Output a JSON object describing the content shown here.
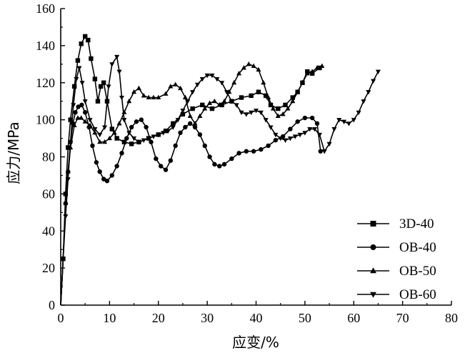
{
  "chart_data": {
    "type": "line",
    "xlabel": "应变/%",
    "ylabel": "应力/MPa",
    "xlim": [
      0,
      80
    ],
    "ylim": [
      0,
      160
    ],
    "x_ticks": [
      0,
      10,
      20,
      30,
      40,
      50,
      60,
      70,
      80
    ],
    "y_ticks": [
      0,
      20,
      40,
      60,
      80,
      100,
      120,
      140,
      160
    ],
    "grid": false,
    "legend_position": "bottom-right",
    "series": [
      {
        "name": "3D-40",
        "marker": "square",
        "points": [
          [
            0,
            0
          ],
          [
            0.5,
            25
          ],
          [
            1,
            60
          ],
          [
            1.5,
            85
          ],
          [
            2,
            100
          ],
          [
            2.8,
            118
          ],
          [
            3.5,
            132
          ],
          [
            4.2,
            141
          ],
          [
            5,
            145
          ],
          [
            5.6,
            143
          ],
          [
            6.2,
            133
          ],
          [
            7,
            122
          ],
          [
            7.6,
            110
          ],
          [
            8.2,
            118
          ],
          [
            8.8,
            120
          ],
          [
            9.5,
            110
          ],
          [
            10.5,
            95
          ],
          [
            11.5,
            90
          ],
          [
            13,
            88
          ],
          [
            14.5,
            87
          ],
          [
            16,
            88
          ],
          [
            18,
            90
          ],
          [
            20,
            92
          ],
          [
            21.5,
            94
          ],
          [
            23,
            98
          ],
          [
            25,
            103
          ],
          [
            27,
            106
          ],
          [
            29,
            108
          ],
          [
            31,
            106
          ],
          [
            33,
            108
          ],
          [
            35,
            110
          ],
          [
            37,
            112
          ],
          [
            39,
            113
          ],
          [
            40.5,
            115
          ],
          [
            42,
            113
          ],
          [
            43,
            108
          ],
          [
            44.5,
            106
          ],
          [
            46,
            108
          ],
          [
            47.5,
            112
          ],
          [
            48.5,
            115
          ],
          [
            49.5,
            120
          ],
          [
            50.5,
            126
          ],
          [
            51.5,
            125
          ],
          [
            53,
            128
          ]
        ]
      },
      {
        "name": "OB-40",
        "marker": "circle",
        "points": [
          [
            0,
            0
          ],
          [
            0.5,
            25
          ],
          [
            1,
            55
          ],
          [
            1.5,
            72
          ],
          [
            2,
            88
          ],
          [
            2.5,
            98
          ],
          [
            3,
            104
          ],
          [
            3.6,
            107
          ],
          [
            4.3,
            108
          ],
          [
            5,
            104
          ],
          [
            5.8,
            96
          ],
          [
            6.5,
            86
          ],
          [
            7.3,
            77
          ],
          [
            8,
            72
          ],
          [
            8.8,
            68
          ],
          [
            9.5,
            67
          ],
          [
            10.5,
            70
          ],
          [
            11.5,
            75
          ],
          [
            12.5,
            82
          ],
          [
            13.5,
            90
          ],
          [
            14.5,
            96
          ],
          [
            15.5,
            99
          ],
          [
            16.5,
            100
          ],
          [
            17.5,
            96
          ],
          [
            18.5,
            88
          ],
          [
            19.5,
            79
          ],
          [
            20.5,
            75
          ],
          [
            21.5,
            73
          ],
          [
            22.5,
            78
          ],
          [
            23.5,
            86
          ],
          [
            24.5,
            93
          ],
          [
            25.5,
            96
          ],
          [
            26.5,
            98
          ],
          [
            27.5,
            96
          ],
          [
            28.5,
            92
          ],
          [
            29.5,
            86
          ],
          [
            30.5,
            80
          ],
          [
            31.5,
            76
          ],
          [
            32.5,
            75
          ],
          [
            33.5,
            76
          ],
          [
            35,
            79
          ],
          [
            36.5,
            82
          ],
          [
            38,
            83
          ],
          [
            39.5,
            83
          ],
          [
            41,
            84
          ],
          [
            42.5,
            86
          ],
          [
            44,
            89
          ],
          [
            45.5,
            91
          ],
          [
            47,
            95
          ],
          [
            48.5,
            99
          ],
          [
            50,
            101
          ],
          [
            51.5,
            101
          ],
          [
            52.5,
            98
          ],
          [
            53.2,
            83
          ]
        ]
      },
      {
        "name": "OB-50",
        "marker": "triangle-up",
        "points": [
          [
            0,
            0
          ],
          [
            0.5,
            25
          ],
          [
            1,
            55
          ],
          [
            1.5,
            72
          ],
          [
            2,
            85
          ],
          [
            2.8,
            97
          ],
          [
            3.5,
            101
          ],
          [
            4.2,
            101
          ],
          [
            5,
            99
          ],
          [
            6,
            97
          ],
          [
            7,
            93
          ],
          [
            8,
            88
          ],
          [
            9,
            88
          ],
          [
            10,
            90
          ],
          [
            11,
            93
          ],
          [
            12,
            98
          ],
          [
            13,
            104
          ],
          [
            14,
            110
          ],
          [
            15,
            115
          ],
          [
            16,
            117
          ],
          [
            17,
            113
          ],
          [
            18,
            112
          ],
          [
            19,
            112
          ],
          [
            20,
            112
          ],
          [
            21.5,
            114
          ],
          [
            22.5,
            118
          ],
          [
            23.5,
            119
          ],
          [
            24.5,
            117
          ],
          [
            25.5,
            112
          ],
          [
            26.5,
            102
          ],
          [
            27.5,
            98
          ],
          [
            28.5,
            102
          ],
          [
            29.5,
            106
          ],
          [
            30.5,
            109
          ],
          [
            31.5,
            110
          ],
          [
            32.5,
            108
          ],
          [
            33.5,
            110
          ],
          [
            34.5,
            115
          ],
          [
            35.5,
            120
          ],
          [
            36.5,
            125
          ],
          [
            37.5,
            128
          ],
          [
            38.5,
            130
          ],
          [
            39.5,
            129
          ],
          [
            40.5,
            127
          ],
          [
            41.5,
            120
          ],
          [
            42.5,
            112
          ],
          [
            43.5,
            106
          ],
          [
            44.5,
            102
          ],
          [
            45.5,
            103
          ],
          [
            46.5,
            106
          ],
          [
            47.5,
            110
          ],
          [
            48.5,
            115
          ],
          [
            49.5,
            120
          ],
          [
            50.5,
            125
          ],
          [
            51.5,
            126
          ],
          [
            52.5,
            128
          ],
          [
            53.5,
            129
          ]
        ]
      },
      {
        "name": "OB-60",
        "marker": "triangle-down",
        "points": [
          [
            0,
            0
          ],
          [
            0.5,
            25
          ],
          [
            1,
            48
          ],
          [
            1.5,
            68
          ],
          [
            2,
            88
          ],
          [
            2.6,
            108
          ],
          [
            3.2,
            122
          ],
          [
            3.8,
            128
          ],
          [
            4.4,
            120
          ],
          [
            5,
            110
          ],
          [
            6,
            100
          ],
          [
            7,
            95
          ],
          [
            8,
            92
          ],
          [
            9,
            96
          ],
          [
            9.8,
            118
          ],
          [
            10.5,
            130
          ],
          [
            11.5,
            134
          ],
          [
            12,
            126
          ],
          [
            12.5,
            112
          ],
          [
            13,
            100
          ],
          [
            14,
            93
          ],
          [
            15,
            90
          ],
          [
            16,
            88
          ],
          [
            17,
            89
          ],
          [
            18,
            90
          ],
          [
            19,
            91
          ],
          [
            20,
            92
          ],
          [
            21,
            93
          ],
          [
            22,
            94
          ],
          [
            23,
            96
          ],
          [
            24,
            100
          ],
          [
            25,
            105
          ],
          [
            26,
            110
          ],
          [
            27,
            115
          ],
          [
            28,
            119
          ],
          [
            29,
            122
          ],
          [
            30,
            124
          ],
          [
            31,
            124
          ],
          [
            32,
            122
          ],
          [
            33,
            120
          ],
          [
            34,
            115
          ],
          [
            35,
            110
          ],
          [
            36,
            108
          ],
          [
            37,
            104
          ],
          [
            38,
            103
          ],
          [
            39,
            104
          ],
          [
            40,
            105
          ],
          [
            41,
            104
          ],
          [
            42,
            100
          ],
          [
            43,
            96
          ],
          [
            44,
            92
          ],
          [
            45,
            90
          ],
          [
            46,
            89
          ],
          [
            47,
            90
          ],
          [
            48,
            91
          ],
          [
            49,
            92
          ],
          [
            50,
            93
          ],
          [
            51,
            95
          ],
          [
            52,
            95
          ],
          [
            53,
            92
          ],
          [
            54,
            83
          ],
          [
            55,
            87
          ],
          [
            56,
            95
          ],
          [
            57,
            100
          ],
          [
            58,
            99
          ],
          [
            59,
            98
          ],
          [
            60,
            100
          ],
          [
            61,
            104
          ],
          [
            62,
            110
          ],
          [
            63,
            115
          ],
          [
            64,
            121
          ],
          [
            65,
            126
          ]
        ]
      }
    ]
  }
}
